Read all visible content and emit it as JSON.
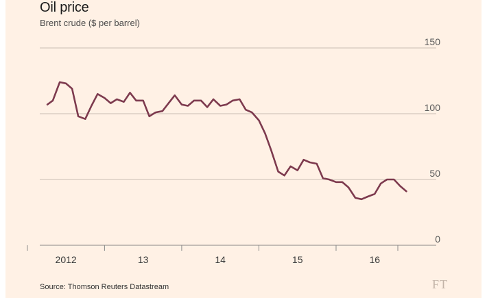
{
  "chart_data": {
    "type": "line",
    "title": "Oil price",
    "subtitle": "Brent crude ($ per barrel)",
    "source": "Source: Thomson Reuters Datastream",
    "ylim": [
      0,
      150
    ],
    "y_ticks": [
      0,
      50,
      100,
      150
    ],
    "x_range": [
      2011.75,
      2016.46
    ],
    "x_ticks": [
      {
        "label": "2012",
        "value": 2012.0
      },
      {
        "label": "13",
        "value": 2013.0
      },
      {
        "label": "14",
        "value": 2014.0
      },
      {
        "label": "15",
        "value": 2015.0
      },
      {
        "label": "16",
        "value": 2016.0
      }
    ],
    "x_minor_ticks": [
      2011.5,
      2012.5,
      2013.5,
      2014.5,
      2015.5,
      2016.3
    ],
    "grid": true,
    "y_axis_position": "right",
    "color": "#7d3a4e",
    "series": [
      {
        "x": [
          2011.76,
          2011.83,
          2011.92,
          2012.0,
          2012.08,
          2012.16,
          2012.25,
          2012.33,
          2012.41,
          2012.5,
          2012.58,
          2012.66,
          2012.75,
          2012.83,
          2012.91,
          2013.0,
          2013.08,
          2013.16,
          2013.25,
          2013.33,
          2013.41,
          2013.5,
          2013.58,
          2013.66,
          2013.75,
          2013.83,
          2013.91,
          2014.0,
          2014.08,
          2014.16,
          2014.25,
          2014.33,
          2014.41,
          2014.5,
          2014.58,
          2014.66,
          2014.75,
          2014.83,
          2014.91,
          2015.0,
          2015.08,
          2015.16,
          2015.25,
          2015.33,
          2015.41,
          2015.5,
          2015.58,
          2015.66,
          2015.75,
          2015.83,
          2015.91,
          2016.0,
          2016.08,
          2016.16,
          2016.25,
          2016.33,
          2016.41
        ],
        "y": [
          107,
          110,
          124,
          123,
          119,
          98,
          96,
          106,
          115,
          112,
          108,
          111,
          109,
          116,
          110,
          110,
          98,
          101,
          102,
          108,
          114,
          107,
          106,
          110,
          110,
          105,
          111,
          106,
          107,
          110,
          111,
          103,
          101,
          95,
          85,
          72,
          56,
          53,
          60,
          57,
          65,
          63,
          62,
          51,
          50,
          48,
          48,
          44,
          36,
          35,
          37,
          39,
          47,
          50,
          50,
          45,
          41
        ]
      }
    ]
  },
  "brand": {
    "logo": "FT",
    "background": "#fff1e5"
  }
}
